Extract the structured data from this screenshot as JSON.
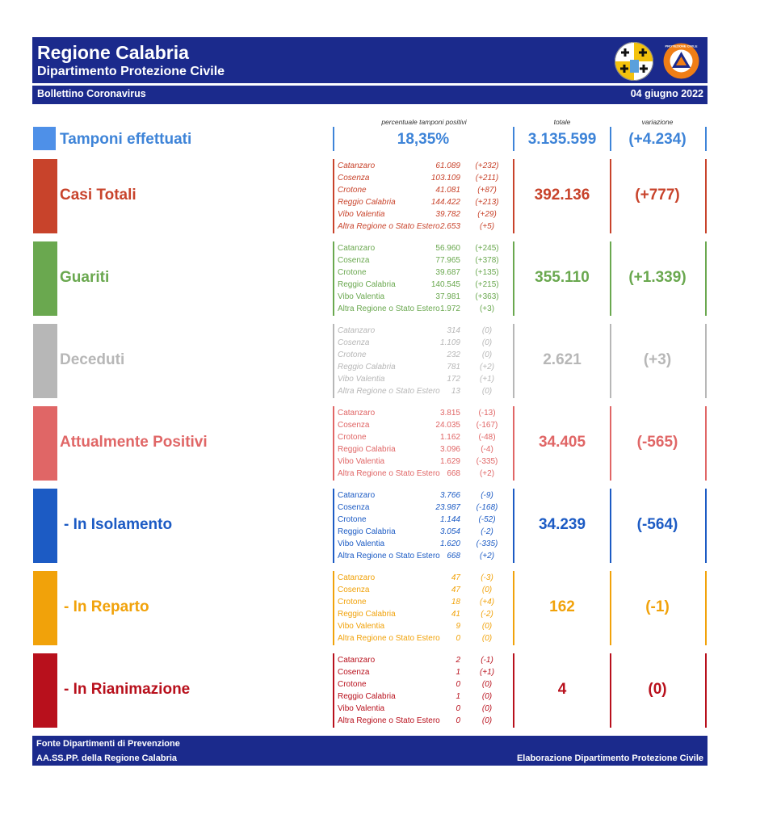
{
  "header": {
    "title": "Regione Calabria",
    "subtitle": "Dipartimento Protezione Civile",
    "bulletin": "Bollettino Coronavirus",
    "date": "04 giugno 2022",
    "logo2_text": "PROTEZIONE CIVILE"
  },
  "columns": {
    "positivity": "percentuale tamponi positivi",
    "total": "totale",
    "variation": "variazione"
  },
  "tamponi": {
    "label": "Tamponi effettuati",
    "positivity": "18,35%",
    "total": "3.135.599",
    "variation": "(+4.234)",
    "color": "#3e84d8"
  },
  "sections": [
    {
      "key": "casi",
      "label": "Casi Totali",
      "color": "#c8432b",
      "total": "392.136",
      "variation": "(+777)",
      "provinces": [
        {
          "name": "Catanzaro",
          "value": "61.089",
          "delta": "(+232)"
        },
        {
          "name": "Cosenza",
          "value": "103.109",
          "delta": "(+211)"
        },
        {
          "name": "Crotone",
          "value": "41.081",
          "delta": "(+87)"
        },
        {
          "name": "Reggio Calabria",
          "value": "144.422",
          "delta": "(+213)"
        },
        {
          "name": "Vibo Valentia",
          "value": "39.782",
          "delta": "(+29)"
        },
        {
          "name": "Altra Regione o Stato Estero",
          "value": "2.653",
          "delta": "(+5)"
        }
      ]
    },
    {
      "key": "guariti",
      "label": "Guariti",
      "color": "#6aa84f",
      "total": "355.110",
      "variation": "(+1.339)",
      "provinces": [
        {
          "name": "Catanzaro",
          "value": "56.960",
          "delta": "(+245)"
        },
        {
          "name": "Cosenza",
          "value": "77.965",
          "delta": "(+378)"
        },
        {
          "name": "Crotone",
          "value": "39.687",
          "delta": "(+135)"
        },
        {
          "name": "Reggio Calabria",
          "value": "140.545",
          "delta": "(+215)"
        },
        {
          "name": "Vibo Valentia",
          "value": "37.981",
          "delta": "(+363)"
        },
        {
          "name": "Altra Regione o Stato Estero",
          "value": "1.972",
          "delta": "(+3)"
        }
      ]
    },
    {
      "key": "deceduti",
      "label": "Deceduti",
      "color": "#b7b7b7",
      "total": "2.621",
      "variation": "(+3)",
      "provinces": [
        {
          "name": "Catanzaro",
          "value": "314",
          "delta": "(0)"
        },
        {
          "name": "Cosenza",
          "value": "1.109",
          "delta": "(0)"
        },
        {
          "name": "Crotone",
          "value": "232",
          "delta": "(0)"
        },
        {
          "name": "Reggio Calabria",
          "value": "781",
          "delta": "(+2)"
        },
        {
          "name": "Vibo Valentia",
          "value": "172",
          "delta": "(+1)"
        },
        {
          "name": "Altra Regione o Stato Estero",
          "value": "13",
          "delta": "(0)"
        }
      ]
    },
    {
      "key": "attualmente",
      "label": "Attualmente Positivi",
      "color": "#e06666",
      "total": "34.405",
      "variation": "(-565)",
      "provinces": [
        {
          "name": "Catanzaro",
          "value": "3.815",
          "delta": "(-13)"
        },
        {
          "name": "Cosenza",
          "value": "24.035",
          "delta": "(-167)"
        },
        {
          "name": "Crotone",
          "value": "1.162",
          "delta": "(-48)"
        },
        {
          "name": "Reggio Calabria",
          "value": "3.096",
          "delta": "(-4)"
        },
        {
          "name": "Vibo Valentia",
          "value": "1.629",
          "delta": "(-335)"
        },
        {
          "name": "Altra Regione o Stato Estero",
          "value": "668",
          "delta": "(+2)"
        }
      ]
    },
    {
      "key": "isolamento",
      "label": "- In Isolamento",
      "color": "#1c5bc4",
      "total": "34.239",
      "variation": "(-564)",
      "provinces": [
        {
          "name": "Catanzaro",
          "value": "3.766",
          "delta": "(-9)"
        },
        {
          "name": "Cosenza",
          "value": "23.987",
          "delta": "(-168)"
        },
        {
          "name": "Crotone",
          "value": "1.144",
          "delta": "(-52)"
        },
        {
          "name": "Reggio Calabria",
          "value": "3.054",
          "delta": "(-2)"
        },
        {
          "name": "Vibo Valentia",
          "value": "1.620",
          "delta": "(-335)"
        },
        {
          "name": "Altra Regione o Stato Estero",
          "value": "668",
          "delta": "(+2)"
        }
      ]
    },
    {
      "key": "reparto",
      "label": "- In Reparto",
      "color": "#f1a20a",
      "total": "162",
      "variation": "(-1)",
      "provinces": [
        {
          "name": "Catanzaro",
          "value": "47",
          "delta": "(-3)"
        },
        {
          "name": "Cosenza",
          "value": "47",
          "delta": "(0)"
        },
        {
          "name": "Crotone",
          "value": "18",
          "delta": "(+4)"
        },
        {
          "name": "Reggio Calabria",
          "value": "41",
          "delta": "(-2)"
        },
        {
          "name": "Vibo Valentia",
          "value": "9",
          "delta": "(0)"
        },
        {
          "name": "Altra Regione o Stato Estero",
          "value": "0",
          "delta": "(0)"
        }
      ]
    },
    {
      "key": "rianimazione",
      "label": "- In Rianimazione",
      "color": "#b8101c",
      "total": "4",
      "variation": "(0)",
      "provinces": [
        {
          "name": "Catanzaro",
          "value": "2",
          "delta": "(-1)"
        },
        {
          "name": "Cosenza",
          "value": "1",
          "delta": "(+1)"
        },
        {
          "name": "Crotone",
          "value": "0",
          "delta": "(0)"
        },
        {
          "name": "Reggio Calabria",
          "value": "1",
          "delta": "(0)"
        },
        {
          "name": "Vibo Valentia",
          "value": "0",
          "delta": "(0)"
        },
        {
          "name": "Altra Regione o Stato Estero",
          "value": "0",
          "delta": "(0)"
        }
      ]
    }
  ],
  "footer": {
    "source_line1": "Fonte Dipartimenti di Prevenzione",
    "source_line2": "AA.SS.PP.  della Regione Calabria",
    "elaboration": "Elaborazione Dipartimento Protezione Civile"
  }
}
